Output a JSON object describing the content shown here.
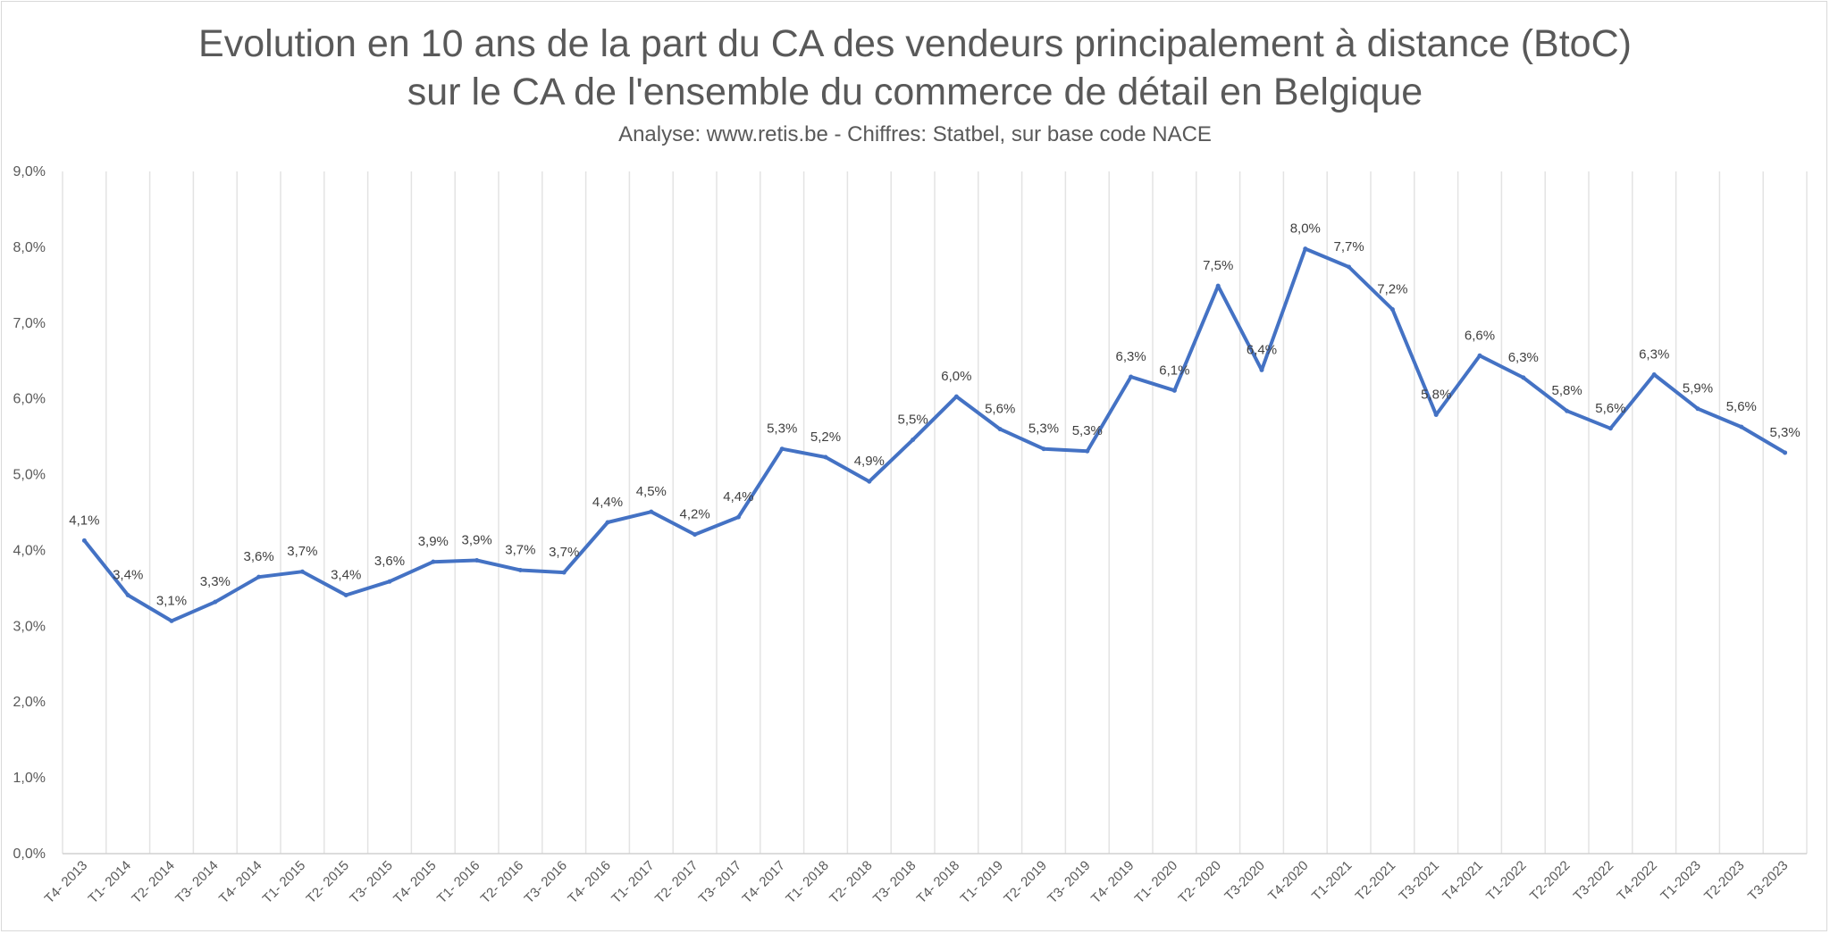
{
  "chart_data": {
    "type": "line",
    "title": "Evolution en 10 ans de la part du CA des vendeurs principalement à distance (BtoC) sur le CA de l'ensemble du commerce de détail en Belgique",
    "title_lines": [
      "Evolution en 10 ans de la part du CA des vendeurs principalement à distance (BtoC)",
      "sur le CA de l'ensemble du commerce de détail en Belgique"
    ],
    "subtitle": "Analyse: www.retis.be -  Chiffres: Statbel, sur base code NACE",
    "xlabel": "",
    "ylabel": "",
    "ylim": [
      0,
      9
    ],
    "y_ticks": [
      0,
      1,
      2,
      3,
      4,
      5,
      6,
      7,
      8,
      9
    ],
    "y_tick_labels": [
      "0,0%",
      "1,0%",
      "2,0%",
      "3,0%",
      "4,0%",
      "5,0%",
      "6,0%",
      "7,0%",
      "8,0%",
      "9,0%"
    ],
    "grid": "vertical",
    "legend": "none",
    "line_color": "#4472c4",
    "categories": [
      "T4- 2013",
      "T1- 2014",
      "T2- 2014",
      "T3- 2014",
      "T4- 2014",
      "T1- 2015",
      "T2- 2015",
      "T3- 2015",
      "T4- 2015",
      "T1- 2016",
      "T2- 2016",
      "T3- 2016",
      "T4- 2016",
      "T1- 2017",
      "T2- 2017",
      "T3- 2017",
      "T4- 2017",
      "T1- 2018",
      "T2- 2018",
      "T3- 2018",
      "T4- 2018",
      "T1- 2019",
      "T2- 2019",
      "T3- 2019",
      "T4- 2019",
      "T1- 2020",
      "T2- 2020",
      "T3-2020",
      "T4-2020",
      "T1-2021",
      "T2-2021",
      "T3-2021",
      "T4-2021",
      "T1-2022",
      "T2-2022",
      "T3-2022",
      "T4-2022",
      "T1-2023",
      "T2-2023",
      "T3-2023"
    ],
    "values": [
      4.13,
      3.41,
      3.07,
      3.32,
      3.65,
      3.72,
      3.41,
      3.59,
      3.85,
      3.87,
      3.74,
      3.71,
      4.37,
      4.51,
      4.21,
      4.44,
      5.34,
      5.23,
      4.91,
      5.46,
      6.03,
      5.6,
      5.34,
      5.31,
      6.29,
      6.11,
      7.49,
      6.38,
      7.98,
      7.74,
      7.18,
      5.79,
      6.57,
      6.28,
      5.84,
      5.61,
      6.32,
      5.87,
      5.63,
      5.29
    ],
    "data_labels": [
      "4,1%",
      "3,4%",
      "3,1%",
      "3,3%",
      "3,6%",
      "3,7%",
      "3,4%",
      "3,6%",
      "3,9%",
      "3,9%",
      "3,7%",
      "3,7%",
      "4,4%",
      "4,5%",
      "4,2%",
      "4,4%",
      "5,3%",
      "5,2%",
      "4,9%",
      "5,5%",
      "6,0%",
      "5,6%",
      "5,3%",
      "5,3%",
      "6,3%",
      "6,1%",
      "7,5%",
      "6,4%",
      "8,0%",
      "7,7%",
      "7,2%",
      "5,8%",
      "6,6%",
      "6,3%",
      "5,8%",
      "5,6%",
      "6,3%",
      "5,9%",
      "5,6%",
      "5,3%"
    ]
  }
}
